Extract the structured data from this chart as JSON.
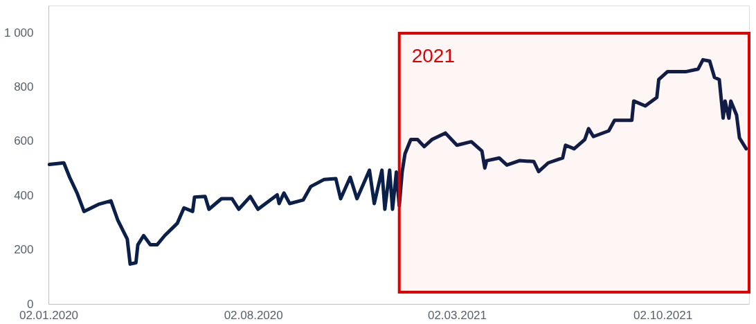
{
  "chart_data": {
    "type": "line",
    "x": [
      "2020-01-03",
      "2020-01-18",
      "2020-01-24",
      "2020-02-01",
      "2020-02-08",
      "2020-02-23",
      "2020-03-07",
      "2020-03-14",
      "2020-03-24",
      "2020-03-27",
      "2020-04-02",
      "2020-04-04",
      "2020-04-10",
      "2020-04-17",
      "2020-04-24",
      "2020-05-02",
      "2020-05-15",
      "2020-05-22",
      "2020-05-31",
      "2020-06-02",
      "2020-06-13",
      "2020-06-17",
      "2020-06-30",
      "2020-07-11",
      "2020-07-18",
      "2020-07-30",
      "2020-08-07",
      "2020-08-27",
      "2020-08-29",
      "2020-09-03",
      "2020-09-09",
      "2020-09-23",
      "2020-10-01",
      "2020-10-15",
      "2020-10-27",
      "2020-11-01",
      "2020-11-11",
      "2020-11-18",
      "2020-12-01",
      "2020-12-06",
      "2020-12-14",
      "2020-12-17",
      "2020-12-22",
      "2020-12-25",
      "2020-12-29",
      "2021-01-01",
      "2021-01-04",
      "2021-01-07",
      "2021-01-13",
      "2021-01-20",
      "2021-01-27",
      "2021-02-04",
      "2021-02-18",
      "2021-03-02",
      "2021-03-17",
      "2021-03-28",
      "2021-03-31",
      "2021-04-02",
      "2021-04-15",
      "2021-04-23",
      "2021-05-06",
      "2021-05-21",
      "2021-05-26",
      "2021-06-05",
      "2021-06-20",
      "2021-06-23",
      "2021-07-02",
      "2021-07-13",
      "2021-07-17",
      "2021-07-22",
      "2021-08-07",
      "2021-08-13",
      "2021-08-31",
      "2021-09-02",
      "2021-09-14",
      "2021-09-26",
      "2021-09-28",
      "2021-10-07",
      "2021-10-26",
      "2021-11-08",
      "2021-11-13",
      "2021-11-20",
      "2021-11-25",
      "2021-11-30",
      "2021-12-04",
      "2021-12-06",
      "2021-12-10",
      "2021-12-12",
      "2021-12-18",
      "2021-12-21",
      "2021-12-28"
    ],
    "series": [
      {
        "color": "#0a1f4a",
        "values": [
          514,
          520,
          467,
          407,
          341,
          367,
          380,
          310,
          239,
          147,
          152,
          218,
          252,
          218,
          218,
          252,
          297,
          354,
          341,
          394,
          396,
          349,
          388,
          388,
          349,
          396,
          349,
          402,
          370,
          409,
          370,
          383,
          433,
          459,
          462,
          388,
          467,
          388,
          493,
          370,
          493,
          349,
          493,
          349,
          486,
          362,
          486,
          554,
          606,
          606,
          580,
          606,
          630,
          585,
          598,
          564,
          501,
          528,
          538,
          512,
          528,
          525,
          488,
          520,
          538,
          585,
          572,
          606,
          646,
          617,
          638,
          677,
          677,
          748,
          730,
          761,
          827,
          856,
          856,
          866,
          900,
          895,
          835,
          827,
          685,
          748,
          685,
          748,
          696,
          612,
          572
        ]
      }
    ],
    "xlim": [
      "2020-01-02",
      "2021-12-31"
    ],
    "xticks": [
      {
        "value": "2020-01-02",
        "label": "02.01.2020"
      },
      {
        "value": "2020-08-02",
        "label": "02.08.2020"
      },
      {
        "value": "2021-03-02",
        "label": "02.03.2021"
      },
      {
        "value": "2021-10-02",
        "label": "02.10.2021"
      }
    ],
    "ylim": [
      0,
      1100
    ],
    "yticks": [
      0,
      200,
      400,
      600,
      800,
      {
        "value": 1000,
        "label": "1 000"
      }
    ],
    "bands": [
      {
        "axis": "x",
        "from": "2021-01-01",
        "to": "2021-12-31",
        "label": "2021",
        "color": "#e00000"
      }
    ],
    "grid": false,
    "marker": "none",
    "line_style": "solid"
  }
}
